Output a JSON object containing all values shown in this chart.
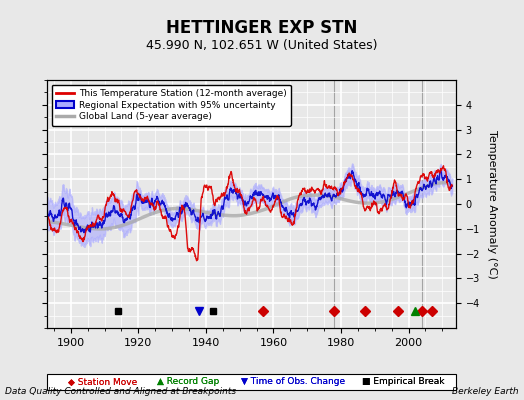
{
  "title": "HETTINGER EXP STN",
  "subtitle": "45.990 N, 102.651 W (United States)",
  "ylabel": "Temperature Anomaly (°C)",
  "xlabel_left": "Data Quality Controlled and Aligned at Breakpoints",
  "xlabel_right": "Berkeley Earth",
  "ylim": [
    -5,
    5
  ],
  "xlim": [
    1893,
    2014
  ],
  "yticks": [
    -4,
    -3,
    -2,
    -1,
    0,
    1,
    2,
    3,
    4
  ],
  "xticks": [
    1900,
    1920,
    1940,
    1960,
    1980,
    2000
  ],
  "background_color": "#e8e8e8",
  "plot_bg_color": "#e8e8e8",
  "grid_color": "#ffffff",
  "station_move_years": [
    1957,
    1978,
    1987,
    1997,
    2004,
    2007
  ],
  "record_gap_years": [
    2002
  ],
  "obs_change_years": [
    1938
  ],
  "empirical_break_years": [
    1914,
    1942
  ],
  "station_move_color": "#cc0000",
  "record_gap_color": "#008000",
  "obs_change_color": "#0000cc",
  "empirical_break_color": "#000000",
  "marker_y": -4.3,
  "red_line_color": "#dd0000",
  "blue_line_color": "#0000cc",
  "blue_fill_color": "#aaaaff",
  "gray_line_color": "#aaaaaa",
  "legend_bg": "#ffffff",
  "vertical_line_years": [
    1978,
    2004
  ],
  "seed": 42
}
